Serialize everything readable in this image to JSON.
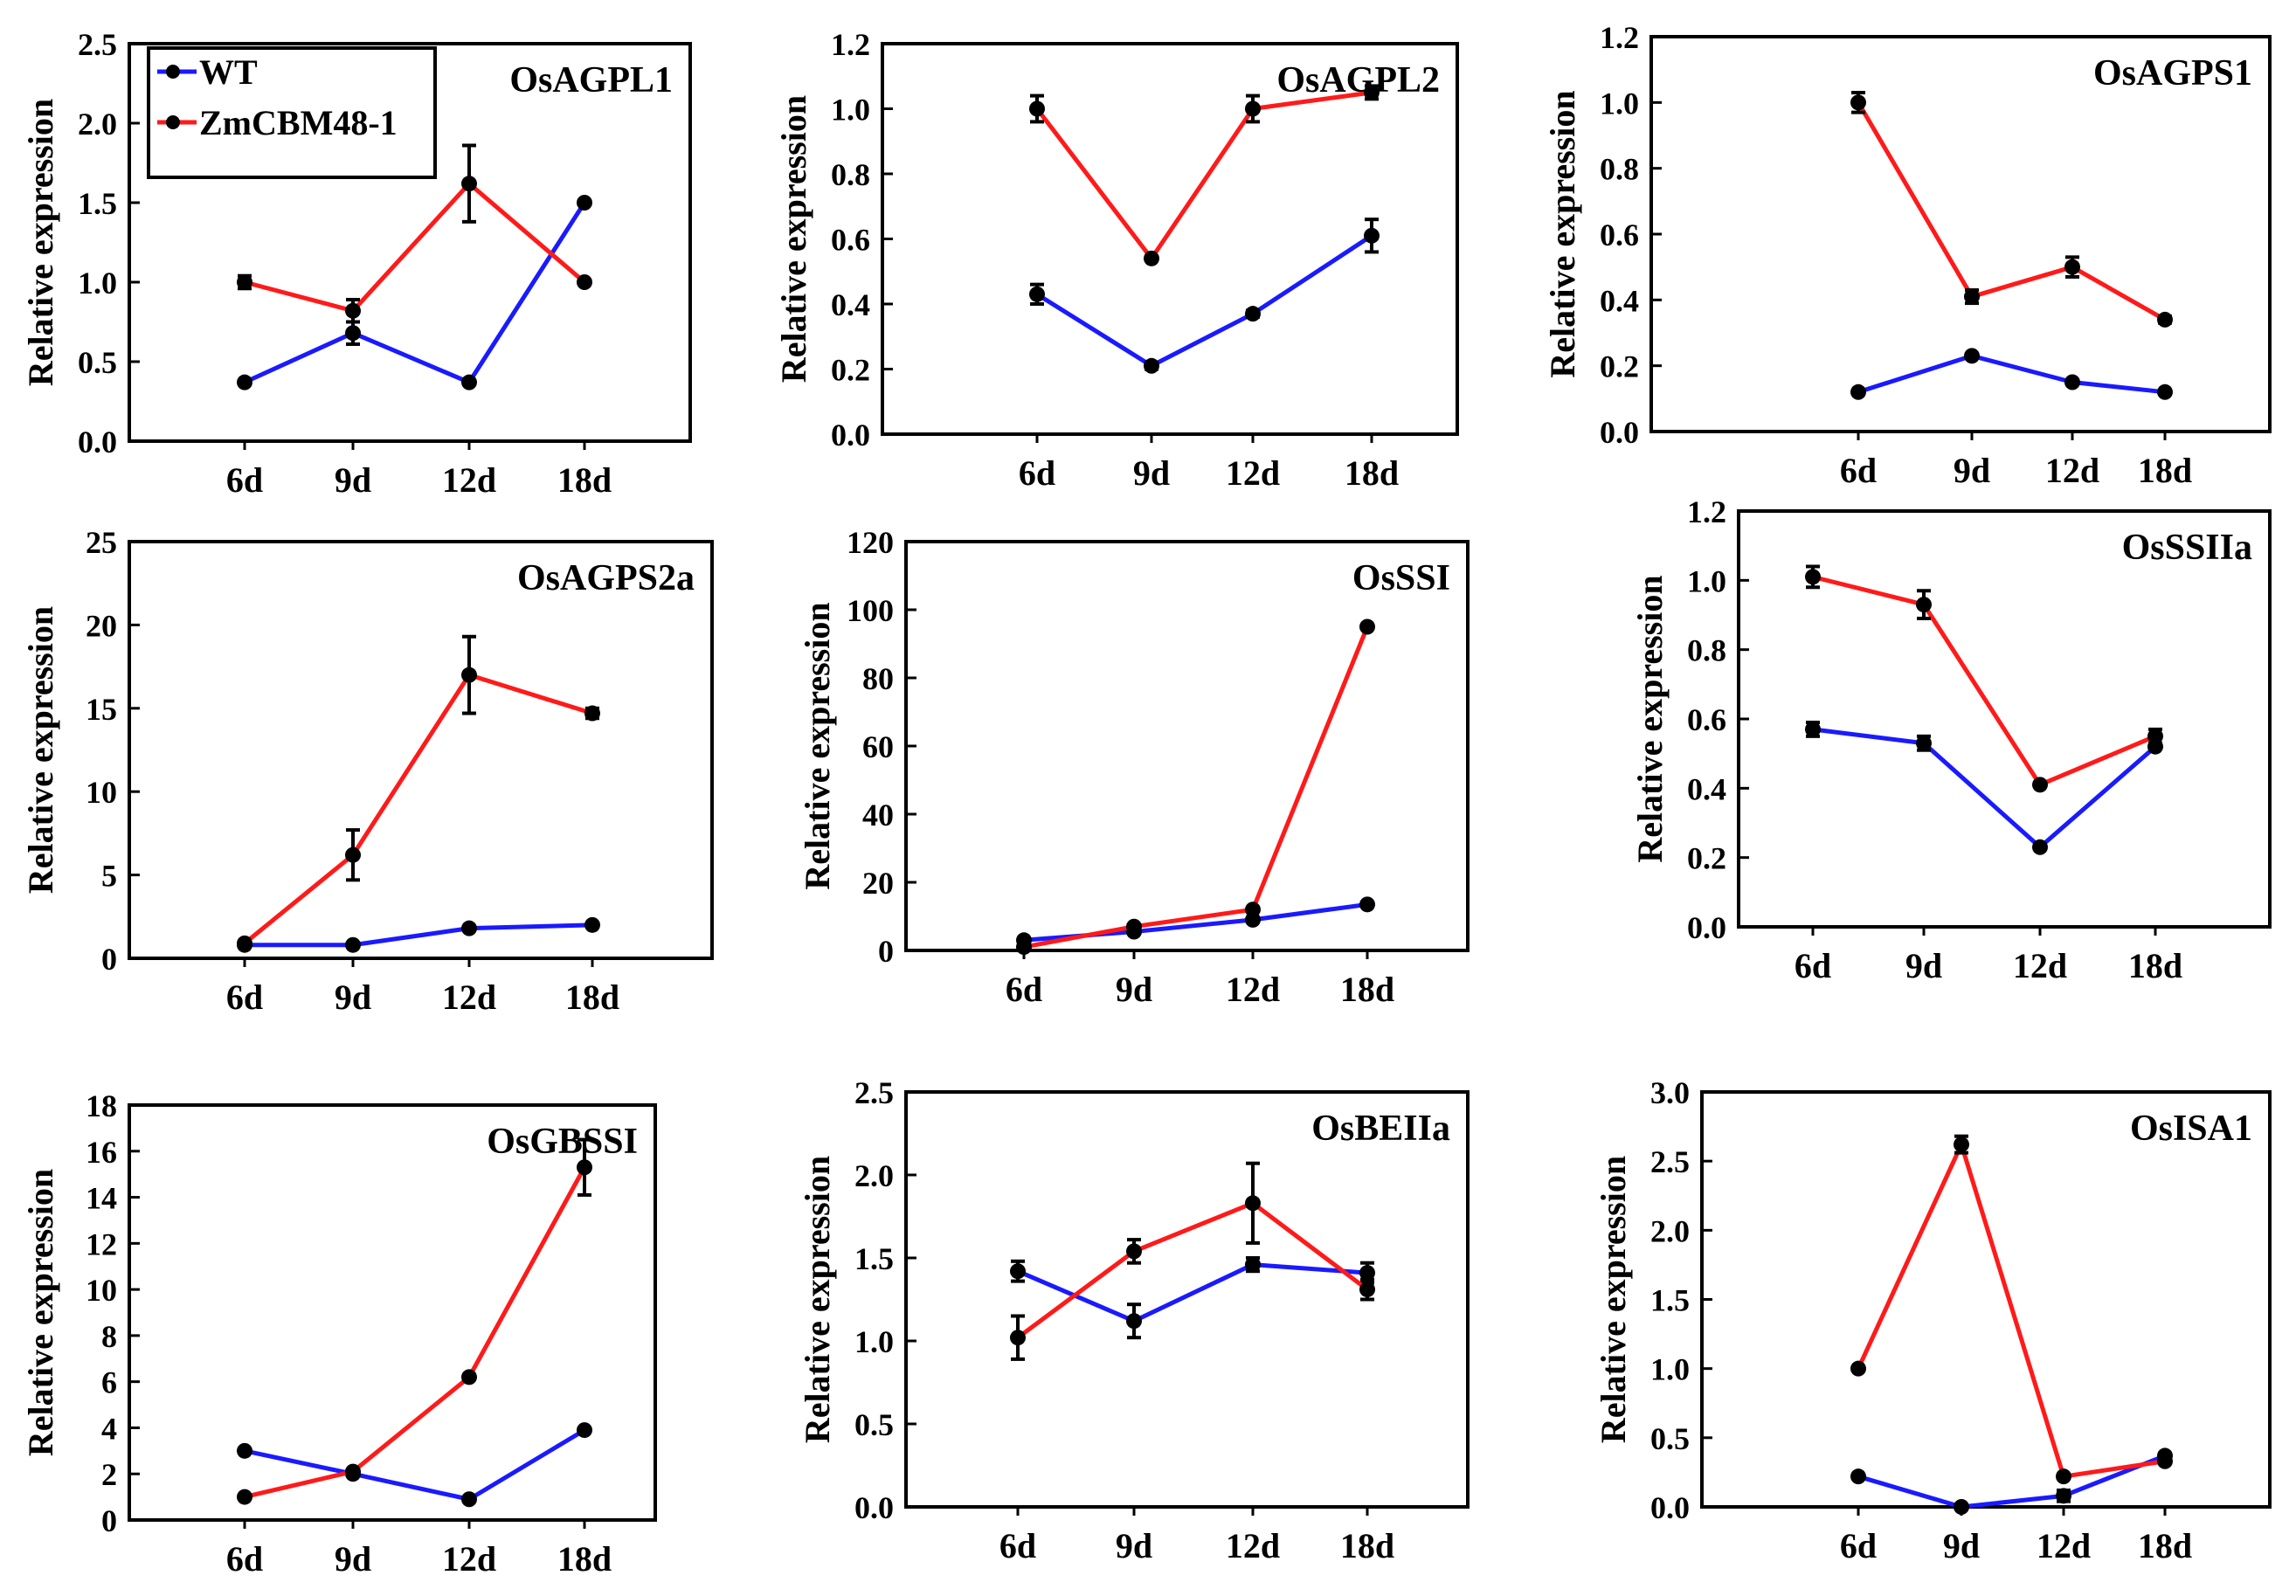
{
  "colors": {
    "wt": "#1a1aff",
    "zm": "#ff1a1a",
    "axis": "#000000",
    "marker": "#000000"
  },
  "legend": {
    "wt_label": "WT",
    "zm_label": "ZmCBM48-1"
  },
  "chart_data": [
    {
      "type": "line",
      "title": "OsAGPL1",
      "ylabel": "Relative expression",
      "xlabel": "",
      "categories": [
        "6d",
        "9d",
        "12d",
        "18d"
      ],
      "ylim": [
        0,
        2.5
      ],
      "yticks": [
        "0.0",
        "0.5",
        "1.0",
        "1.5",
        "2.0",
        "2.5"
      ],
      "series": [
        {
          "name": "WT",
          "values": [
            0.37,
            0.68,
            0.37,
            1.5
          ],
          "errors": [
            0,
            0.07,
            0,
            0
          ]
        },
        {
          "name": "ZmCBM48-1",
          "values": [
            1.0,
            0.82,
            1.62,
            1.0
          ],
          "errors": [
            0.04,
            0.07,
            0.24,
            0
          ]
        }
      ]
    },
    {
      "type": "line",
      "title": "OsAGPL2",
      "ylabel": "Relative expression",
      "xlabel": "",
      "categories": [
        "6d",
        "9d",
        "12d",
        "18d"
      ],
      "ylim": [
        0,
        1.2
      ],
      "yticks": [
        "0.0",
        "0.2",
        "0.4",
        "0.6",
        "0.8",
        "1.0",
        "1.2"
      ],
      "series": [
        {
          "name": "WT",
          "values": [
            0.43,
            0.21,
            0.37,
            0.61
          ],
          "errors": [
            0.03,
            0.01,
            0.01,
            0.05
          ]
        },
        {
          "name": "ZmCBM48-1",
          "values": [
            1.0,
            0.54,
            1.0,
            1.05
          ],
          "errors": [
            0.04,
            0,
            0.04,
            0.02
          ]
        }
      ]
    },
    {
      "type": "line",
      "title": "OsAGPS1",
      "ylabel": "Relative expression",
      "xlabel": "",
      "categories": [
        "6d",
        "9d",
        "12d",
        "18d"
      ],
      "ylim": [
        0,
        1.2
      ],
      "yticks": [
        "0.0",
        "0.2",
        "0.4",
        "0.6",
        "0.8",
        "1.0",
        "1.2"
      ],
      "series": [
        {
          "name": "WT",
          "values": [
            0.12,
            0.23,
            0.15,
            0.12
          ],
          "errors": [
            0,
            0,
            0,
            0
          ]
        },
        {
          "name": "ZmCBM48-1",
          "values": [
            1.0,
            0.41,
            0.5,
            0.34
          ],
          "errors": [
            0.03,
            0.02,
            0.03,
            0.01
          ]
        }
      ]
    },
    {
      "type": "line",
      "title": "OsAGPS2a",
      "ylabel": "Relative expression",
      "xlabel": "",
      "categories": [
        "6d",
        "9d",
        "12d",
        "18d"
      ],
      "ylim": [
        0,
        25
      ],
      "yticks": [
        "0",
        "5",
        "10",
        "15",
        "20",
        "25"
      ],
      "series": [
        {
          "name": "WT",
          "values": [
            0.8,
            0.8,
            1.8,
            2.0
          ],
          "errors": [
            0,
            0,
            0,
            0
          ]
        },
        {
          "name": "ZmCBM48-1",
          "values": [
            0.9,
            6.2,
            17.0,
            14.7
          ],
          "errors": [
            0,
            1.5,
            2.3,
            0.3
          ]
        }
      ]
    },
    {
      "type": "line",
      "title": "OsSSI",
      "ylabel": "Relative expression",
      "xlabel": "",
      "categories": [
        "6d",
        "9d",
        "12d",
        "18d"
      ],
      "ylim": [
        0,
        120
      ],
      "yticks": [
        "0",
        "20",
        "40",
        "60",
        "80",
        "100",
        "120"
      ],
      "series": [
        {
          "name": "WT",
          "values": [
            3,
            5.5,
            9,
            13.5
          ],
          "errors": [
            0,
            0,
            0,
            0
          ]
        },
        {
          "name": "ZmCBM48-1",
          "values": [
            1,
            7,
            12,
            95
          ],
          "errors": [
            0,
            0,
            0,
            0
          ]
        }
      ]
    },
    {
      "type": "line",
      "title": "OsSSIIa",
      "ylabel": "Relative expression",
      "xlabel": "",
      "categories": [
        "6d",
        "9d",
        "12d",
        "18d"
      ],
      "ylim": [
        0,
        1.2
      ],
      "yticks": [
        "0.0",
        "0.2",
        "0.4",
        "0.6",
        "0.8",
        "1.0",
        "1.2"
      ],
      "series": [
        {
          "name": "WT",
          "values": [
            0.57,
            0.53,
            0.23,
            0.52
          ],
          "errors": [
            0.02,
            0.02,
            0,
            0
          ]
        },
        {
          "name": "ZmCBM48-1",
          "values": [
            1.01,
            0.93,
            0.41,
            0.55
          ],
          "errors": [
            0.03,
            0.04,
            0,
            0.02
          ]
        }
      ]
    },
    {
      "type": "line",
      "title": "OsGBSSI",
      "ylabel": "Relative expression",
      "xlabel": "",
      "categories": [
        "6d",
        "9d",
        "12d",
        "18d"
      ],
      "ylim": [
        0,
        18
      ],
      "yticks": [
        "0",
        "2",
        "4",
        "6",
        "8",
        "10",
        "12",
        "14",
        "16",
        "18"
      ],
      "series": [
        {
          "name": "WT",
          "values": [
            3.0,
            2.0,
            0.9,
            3.9
          ],
          "errors": [
            0,
            0,
            0,
            0
          ]
        },
        {
          "name": "ZmCBM48-1",
          "values": [
            1.0,
            2.1,
            6.2,
            15.3
          ],
          "errors": [
            0,
            0,
            0,
            1.2
          ]
        }
      ]
    },
    {
      "type": "line",
      "title": "OsBEIIa",
      "ylabel": "Relative expression",
      "xlabel": "",
      "categories": [
        "6d",
        "9d",
        "12d",
        "18d"
      ],
      "ylim": [
        0,
        2.5
      ],
      "yticks": [
        "0.0",
        "0.5",
        "1.0",
        "1.5",
        "2.0",
        "2.5"
      ],
      "series": [
        {
          "name": "WT",
          "values": [
            1.42,
            1.12,
            1.46,
            1.41
          ],
          "errors": [
            0.06,
            0.1,
            0.04,
            0.06
          ]
        },
        {
          "name": "ZmCBM48-1",
          "values": [
            1.02,
            1.54,
            1.83,
            1.31
          ],
          "errors": [
            0.13,
            0.07,
            0.24,
            0.06
          ]
        }
      ]
    },
    {
      "type": "line",
      "title": "OsISA1",
      "ylabel": "Relative expression",
      "xlabel": "",
      "categories": [
        "6d",
        "9d",
        "12d",
        "18d"
      ],
      "ylim": [
        0,
        3.0
      ],
      "yticks": [
        "0.0",
        "0.5",
        "1.0",
        "1.5",
        "2.0",
        "2.5",
        "3.0"
      ],
      "series": [
        {
          "name": "WT",
          "values": [
            0.22,
            0.0,
            0.08,
            0.37
          ],
          "errors": [
            0,
            0,
            0.04,
            0
          ]
        },
        {
          "name": "ZmCBM48-1",
          "values": [
            1.0,
            2.62,
            0.22,
            0.33
          ],
          "errors": [
            0,
            0.06,
            0,
            0
          ]
        }
      ]
    }
  ]
}
